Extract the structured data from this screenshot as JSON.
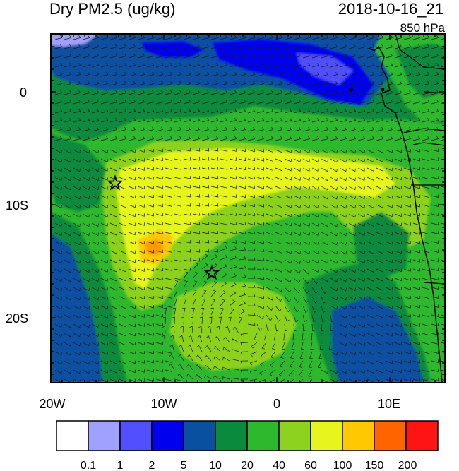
{
  "header": {
    "title": "Dry PM2.5 (ug/kg)",
    "datetime": "2018-10-16_21",
    "level": "850 hPa"
  },
  "axes": {
    "x_ticks": [
      "20W",
      "10W",
      "0",
      "10E"
    ],
    "y_ticks": [
      "0",
      "10S",
      "20S"
    ]
  },
  "colorbar": {
    "colors": [
      "#ffffff",
      "#a0a0ff",
      "#5050ff",
      "#0000ee",
      "#0a4fa0",
      "#0a8a3c",
      "#2db82d",
      "#8cd21e",
      "#e6f51e",
      "#ffc800",
      "#ff6400",
      "#ff1414"
    ],
    "labels": [
      "0.1",
      "1",
      "2",
      "5",
      "10",
      "20",
      "40",
      "60",
      "100",
      "150",
      "200"
    ]
  },
  "markers": {
    "icon": "star-icon",
    "count": 2
  }
}
